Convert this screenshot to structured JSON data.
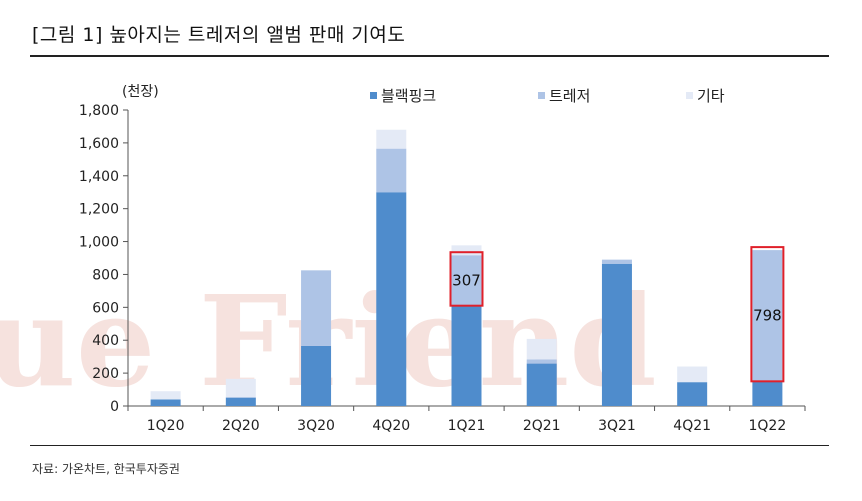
{
  "title": "[그림 1] 높아지는 트레저의 앨범 판매 기여도",
  "source": "자료: 가온차트, 한국투자증권",
  "chart_data": {
    "type": "bar",
    "stacked": true,
    "unit_label": "(천장)",
    "categories": [
      "1Q20",
      "2Q20",
      "3Q20",
      "4Q20",
      "1Q21",
      "2Q21",
      "3Q21",
      "4Q21",
      "1Q22"
    ],
    "series": [
      {
        "name": "블랙핑크",
        "color": "#4f8ccc",
        "values": [
          40,
          50,
          365,
          1300,
          610,
          258,
          865,
          145,
          150
        ]
      },
      {
        "name": "트레저",
        "color": "#aec4e6",
        "values": [
          0,
          5,
          460,
          265,
          307,
          25,
          25,
          0,
          798
        ]
      },
      {
        "name": "기타",
        "color": "#e4eaf6",
        "values": [
          50,
          110,
          0,
          115,
          60,
          125,
          0,
          95,
          0
        ]
      }
    ],
    "ylim": [
      0,
      1800
    ],
    "yticks": [
      0,
      200,
      400,
      600,
      800,
      1000,
      1200,
      1400,
      1600,
      1800
    ],
    "ytick_labels": [
      "0",
      "200",
      "400",
      "600",
      "800",
      "1,000",
      "1,200",
      "1,400",
      "1,600",
      "1,800"
    ],
    "legend_position": "top",
    "annotations": [
      {
        "category": "1Q21",
        "series": "트레저",
        "text": "307",
        "box_color": "#e0202a"
      },
      {
        "category": "1Q22",
        "series": "트레저",
        "text": "798",
        "box_color": "#e0202a"
      }
    ],
    "watermark": "ue Friend"
  }
}
